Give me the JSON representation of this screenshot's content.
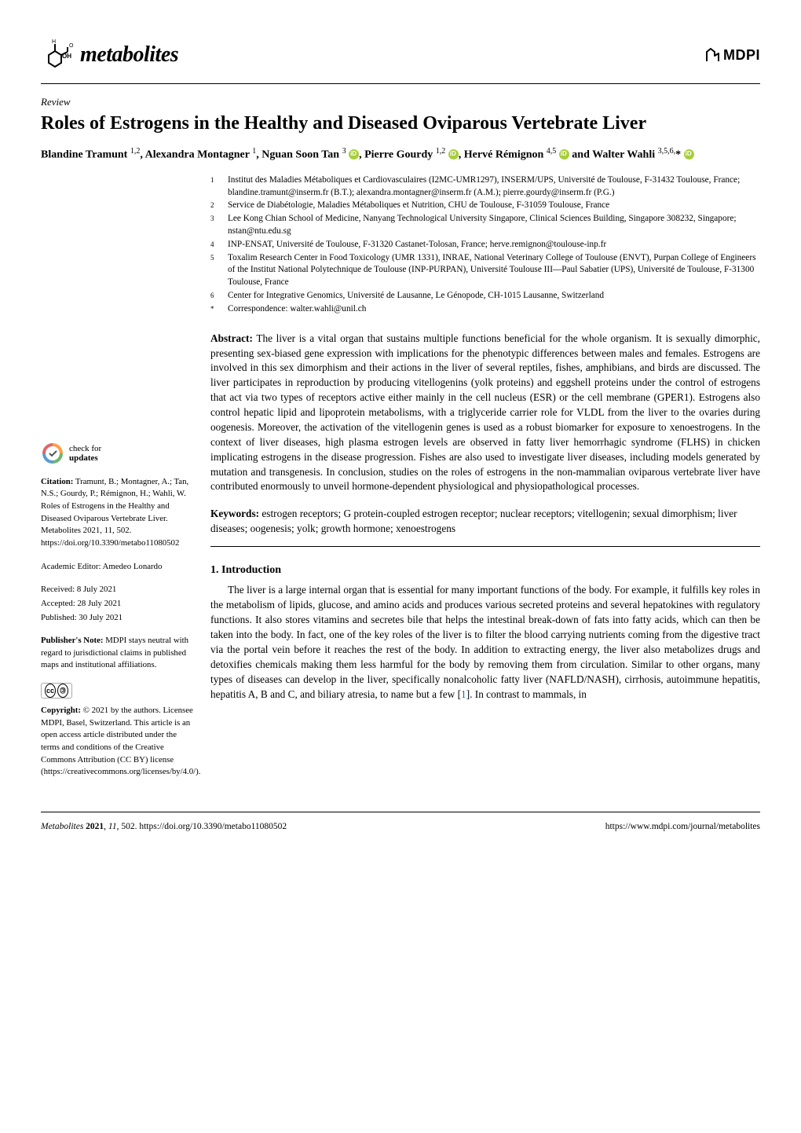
{
  "journal": {
    "name": "metabolites",
    "publisher": "MDPI"
  },
  "article": {
    "type": "Review",
    "title": "Roles of Estrogens in the Healthy and Diseased Oviparous Vertebrate Liver",
    "authors_html": "Blandine Tramunt <sup>1,2</sup>, Alexandra Montagner <sup>1</sup>, Nguan Soon Tan <sup>3</sup> <span class='orcid' data-name='orcid-icon' data-interactable='false'></span>, Pierre Gourdy <sup>1,2</sup> <span class='orcid' data-name='orcid-icon' data-interactable='false'></span>, Hervé Rémignon <sup>4,5</sup> <span class='orcid' data-name='orcid-icon' data-interactable='false'></span> and Walter Wahli <sup>3,5,6,</sup>* <span class='orcid' data-name='orcid-icon' data-interactable='false'></span>"
  },
  "affiliations": [
    {
      "num": "1",
      "text": "Institut des Maladies Métaboliques et Cardiovasculaires (I2MC-UMR1297), INSERM/UPS, Université de Toulouse, F-31432 Toulouse, France; blandine.tramunt@inserm.fr (B.T.); alexandra.montagner@inserm.fr (A.M.); pierre.gourdy@inserm.fr (P.G.)"
    },
    {
      "num": "2",
      "text": "Service de Diabétologie, Maladies Métaboliques et Nutrition, CHU de Toulouse, F-31059 Toulouse, France"
    },
    {
      "num": "3",
      "text": "Lee Kong Chian School of Medicine, Nanyang Technological University Singapore, Clinical Sciences Building, Singapore 308232, Singapore; nstan@ntu.edu.sg"
    },
    {
      "num": "4",
      "text": "INP-ENSAT, Université de Toulouse, F-31320 Castanet-Tolosan, France; herve.remignon@toulouse-inp.fr"
    },
    {
      "num": "5",
      "text": "Toxalim Research Center in Food Toxicology (UMR 1331), INRAE, National Veterinary College of Toulouse (ENVT), Purpan College of Engineers of the Institut National Polytechnique de Toulouse (INP-PURPAN), Université Toulouse III—Paul Sabatier (UPS), Université de Toulouse, F-31300 Toulouse, France"
    },
    {
      "num": "6",
      "text": "Center for Integrative Genomics, Université de Lausanne, Le Génopode, CH-1015 Lausanne, Switzerland"
    },
    {
      "num": "*",
      "text": "Correspondence: walter.wahli@unil.ch"
    }
  ],
  "abstract": {
    "label": "Abstract:",
    "text": "The liver is a vital organ that sustains multiple functions beneficial for the whole organism. It is sexually dimorphic, presenting sex-biased gene expression with implications for the phenotypic differences between males and females. Estrogens are involved in this sex dimorphism and their actions in the liver of several reptiles, fishes, amphibians, and birds are discussed. The liver participates in reproduction by producing vitellogenins (yolk proteins) and eggshell proteins under the control of estrogens that act via two types of receptors active either mainly in the cell nucleus (ESR) or the cell membrane (GPER1). Estrogens also control hepatic lipid and lipoprotein metabolisms, with a triglyceride carrier role for VLDL from the liver to the ovaries during oogenesis. Moreover, the activation of the vitellogenin genes is used as a robust biomarker for exposure to xenoestrogens. In the context of liver diseases, high plasma estrogen levels are observed in fatty liver hemorrhagic syndrome (FLHS) in chicken implicating estrogens in the disease progression. Fishes are also used to investigate liver diseases, including models generated by mutation and transgenesis. In conclusion, studies on the roles of estrogens in the non-mammalian oviparous vertebrate liver have contributed enormously to unveil hormone-dependent physiological and physiopathological processes."
  },
  "keywords": {
    "label": "Keywords:",
    "text": "estrogen receptors; G protein-coupled estrogen receptor; nuclear receptors; vitellogenin; sexual dimorphism; liver diseases; oogenesis; yolk; growth hormone; xenoestrogens"
  },
  "sidebar": {
    "check_line1": "check for",
    "check_line2": "updates",
    "citation_label": "Citation:",
    "citation": "Tramunt, B.; Montagner, A.; Tan, N.S.; Gourdy, P.; Rémignon, H.; Wahli, W. Roles of Estrogens in the Healthy and Diseased Oviparous Vertebrate Liver. Metabolites 2021, 11, 502. https://doi.org/10.3390/metabo11080502",
    "editor": "Academic Editor: Amedeo Lonardo",
    "received": "Received: 8 July 2021",
    "accepted": "Accepted: 28 July 2021",
    "published": "Published: 30 July 2021",
    "note_label": "Publisher's Note:",
    "note": "MDPI stays neutral with regard to jurisdictional claims in published maps and institutional affiliations.",
    "copyright_label": "Copyright:",
    "copyright": "© 2021 by the authors. Licensee MDPI, Basel, Switzerland. This article is an open access article distributed under the terms and conditions of the Creative Commons Attribution (CC BY) license (https://creativecommons.org/licenses/by/4.0/)."
  },
  "section1": {
    "heading": "1. Introduction",
    "para1": "The liver is a large internal organ that is essential for many important functions of the body. For example, it fulfills key roles in the metabolism of lipids, glucose, and amino acids and produces various secreted proteins and several hepatokines with regulatory functions. It also stores vitamins and secretes bile that helps the intestinal break-down of fats into fatty acids, which can then be taken into the body. In fact, one of the key roles of the liver is to filter the blood carrying nutrients coming from the digestive tract via the portal vein before it reaches the rest of the body. In addition to extracting energy, the liver also metabolizes drugs and detoxifies chemicals making them less harmful for the body by removing them from circulation. Similar to other organs, many types of diseases can develop in the liver, specifically nonalcoholic fatty liver (NAFLD/NASH), cirrhosis, autoimmune hepatitis, hepatitis A, B and C, and biliary atresia, to name but a few [",
    "ref1": "1",
    "para1_tail": "]. In contrast to mammals, in"
  },
  "footer": {
    "left": "Metabolites 2021, 11, 502. https://doi.org/10.3390/metabo11080502",
    "right": "https://www.mdpi.com/journal/metabolites"
  },
  "colors": {
    "orcid": "#a6ce39",
    "link": "#0070c0",
    "check_segments": [
      "#ff6e6e",
      "#6eb5ff",
      "#8de08d",
      "#ffd86e"
    ]
  }
}
